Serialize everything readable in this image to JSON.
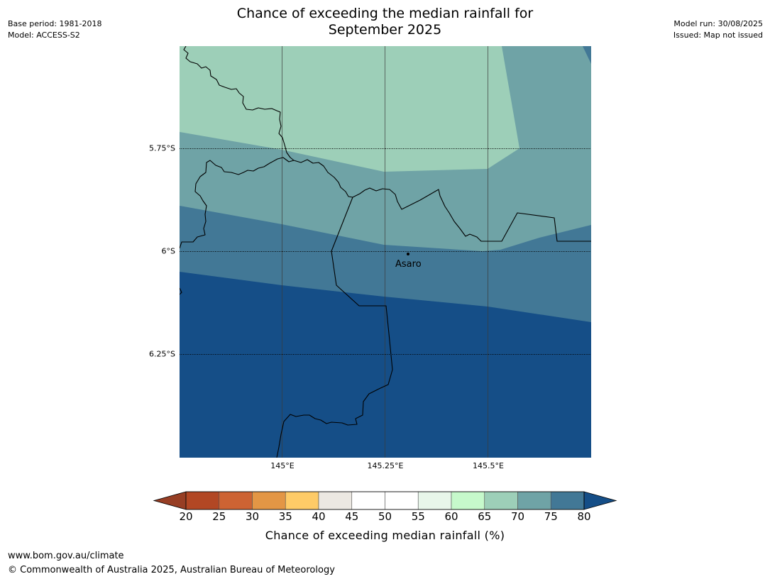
{
  "title": {
    "line1": "Chance of exceeding the median rainfall for",
    "line2": "September 2025"
  },
  "meta": {
    "base_period": "Base period: 1981-2018",
    "model": "Model: ACCESS-S2",
    "model_run": "Model run: 30/08/2025",
    "issued": "Issued: Map not issued"
  },
  "map": {
    "lat_labels": [
      "5.75°S",
      "6°S",
      "6.25°S"
    ],
    "lon_labels": [
      "145°E",
      "145.25°E",
      "145.5°E"
    ],
    "place": {
      "name": "Asaro",
      "lon": 145.3,
      "lat": -6.0
    },
    "regions": [
      {
        "band": "65-70",
        "color": "#9dcfb8"
      },
      {
        "band": "70-75",
        "color": "#6fa3a6"
      },
      {
        "band": "75-80",
        "color": "#427896"
      },
      {
        "band": ">80",
        "color": "#154e87"
      }
    ]
  },
  "colorbar": {
    "ticks": [
      "20",
      "25",
      "30",
      "35",
      "40",
      "45",
      "50",
      "55",
      "60",
      "65",
      "70",
      "75",
      "80"
    ],
    "colors": [
      "#b24724",
      "#cd6333",
      "#e39645",
      "#fecb67",
      "#ece8e2",
      "#ffffff",
      "#ffffff",
      "#e8f6ea",
      "#c6f9cb",
      "#9dcfb8",
      "#6fa3a6",
      "#427896"
    ],
    "under_color": "#973e24",
    "over_color": "#154e87",
    "label": "Chance of exceeding median rainfall (%)"
  },
  "footer": {
    "url": "www.bom.gov.au/climate",
    "copyright": "© Commonwealth of Australia 2025, Australian Bureau of Meteorology"
  }
}
